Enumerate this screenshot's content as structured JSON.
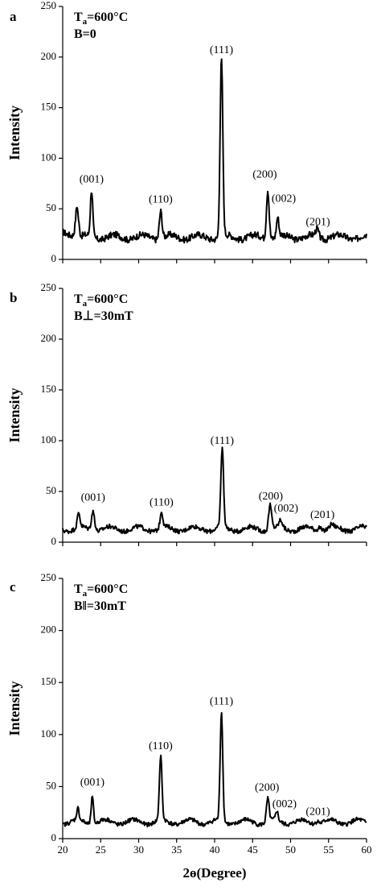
{
  "chart_data": [
    {
      "type": "line",
      "panel": "a",
      "condition_main": "T",
      "condition_sub": "a",
      "condition_rest": "=600°C",
      "condition_b": "B=0",
      "ylabel": "Intensity",
      "ylim": [
        0,
        250
      ],
      "yticks": [
        "0",
        "50",
        "100",
        "150",
        "200",
        "250"
      ],
      "xlim": [
        20,
        60
      ],
      "baseline": 22,
      "noise": 3.2,
      "peaks": [
        {
          "x": 21.9,
          "h": 28,
          "w": 0.28
        },
        {
          "x": 23.8,
          "h": 46,
          "w": 0.22
        },
        {
          "x": 32.9,
          "h": 27,
          "w": 0.25
        },
        {
          "x": 40.9,
          "h": 175,
          "w": 0.25
        },
        {
          "x": 47.0,
          "h": 49,
          "w": 0.25
        },
        {
          "x": 48.3,
          "h": 19,
          "w": 0.22
        },
        {
          "x": 53.5,
          "h": 8,
          "w": 0.3
        }
      ],
      "labels": [
        {
          "text": "(001)",
          "x": 23.8,
          "y": 76
        },
        {
          "text": "(110)",
          "x": 32.9,
          "y": 56
        },
        {
          "text": "(111)",
          "x": 40.9,
          "y": 204
        },
        {
          "text": "(200)",
          "x": 46.6,
          "y": 81
        },
        {
          "text": "(002)",
          "x": 49.1,
          "y": 57
        },
        {
          "text": "(201)",
          "x": 53.6,
          "y": 34
        }
      ]
    },
    {
      "type": "line",
      "panel": "b",
      "condition_main": "T",
      "condition_sub": "a",
      "condition_rest": "=600°C",
      "condition_b": "B⊥=30mT",
      "ylabel": "Intensity",
      "ylim": [
        0,
        250
      ],
      "yticks": [
        "0",
        "50",
        "100",
        "150",
        "200",
        "250"
      ],
      "xlim": [
        20,
        60
      ],
      "baseline": 13,
      "noise": 2.2,
      "peaks": [
        {
          "x": 22.1,
          "h": 14,
          "w": 0.25
        },
        {
          "x": 24.0,
          "h": 19,
          "w": 0.3
        },
        {
          "x": 33.0,
          "h": 16,
          "w": 0.25
        },
        {
          "x": 41.0,
          "h": 78,
          "w": 0.25
        },
        {
          "x": 47.3,
          "h": 24,
          "w": 0.28
        },
        {
          "x": 48.7,
          "h": 7,
          "w": 0.3
        },
        {
          "x": 53.8,
          "h": 4,
          "w": 0.3
        },
        {
          "x": 55.4,
          "h": 3,
          "w": 0.3
        }
      ],
      "labels": [
        {
          "text": "(001)",
          "x": 24.0,
          "y": 41
        },
        {
          "text": "(110)",
          "x": 33.0,
          "y": 36
        },
        {
          "text": "(111)",
          "x": 41.0,
          "y": 97
        },
        {
          "text": "(200)",
          "x": 47.4,
          "y": 42
        },
        {
          "text": "(002)",
          "x": 49.4,
          "y": 30
        },
        {
          "text": "(201)",
          "x": 54.2,
          "y": 24
        }
      ]
    },
    {
      "type": "line",
      "panel": "c",
      "condition_main": "T",
      "condition_sub": "a",
      "condition_rest": "=600°C",
      "condition_b": "B‖=30mT",
      "ylabel": "Intensity",
      "ylim": [
        0,
        250
      ],
      "yticks": [
        "0",
        "50",
        "100",
        "150",
        "200",
        "250"
      ],
      "xlim": [
        20,
        60
      ],
      "baseline": 16,
      "noise": 2.0,
      "peaks": [
        {
          "x": 22.0,
          "h": 11,
          "w": 0.22
        },
        {
          "x": 23.9,
          "h": 26,
          "w": 0.22
        },
        {
          "x": 32.9,
          "h": 61,
          "w": 0.24
        },
        {
          "x": 40.9,
          "h": 104,
          "w": 0.24
        },
        {
          "x": 47.0,
          "h": 22,
          "w": 0.25
        },
        {
          "x": 48.2,
          "h": 9,
          "w": 0.22
        },
        {
          "x": 53.5,
          "h": 3,
          "w": 0.3
        }
      ],
      "labels": [
        {
          "text": "(001)",
          "x": 23.9,
          "y": 51
        },
        {
          "text": "(110)",
          "x": 32.9,
          "y": 86
        },
        {
          "text": "(111)",
          "x": 40.9,
          "y": 129
        },
        {
          "text": "(200)",
          "x": 46.9,
          "y": 46
        },
        {
          "text": "(002)",
          "x": 49.2,
          "y": 30
        },
        {
          "text": "(201)",
          "x": 53.6,
          "y": 23
        }
      ]
    }
  ],
  "x_axis": {
    "ticks": [
      "20",
      "25",
      "30",
      "35",
      "40",
      "45",
      "50",
      "55",
      "60"
    ],
    "label": "2ɵ(Degree)"
  }
}
